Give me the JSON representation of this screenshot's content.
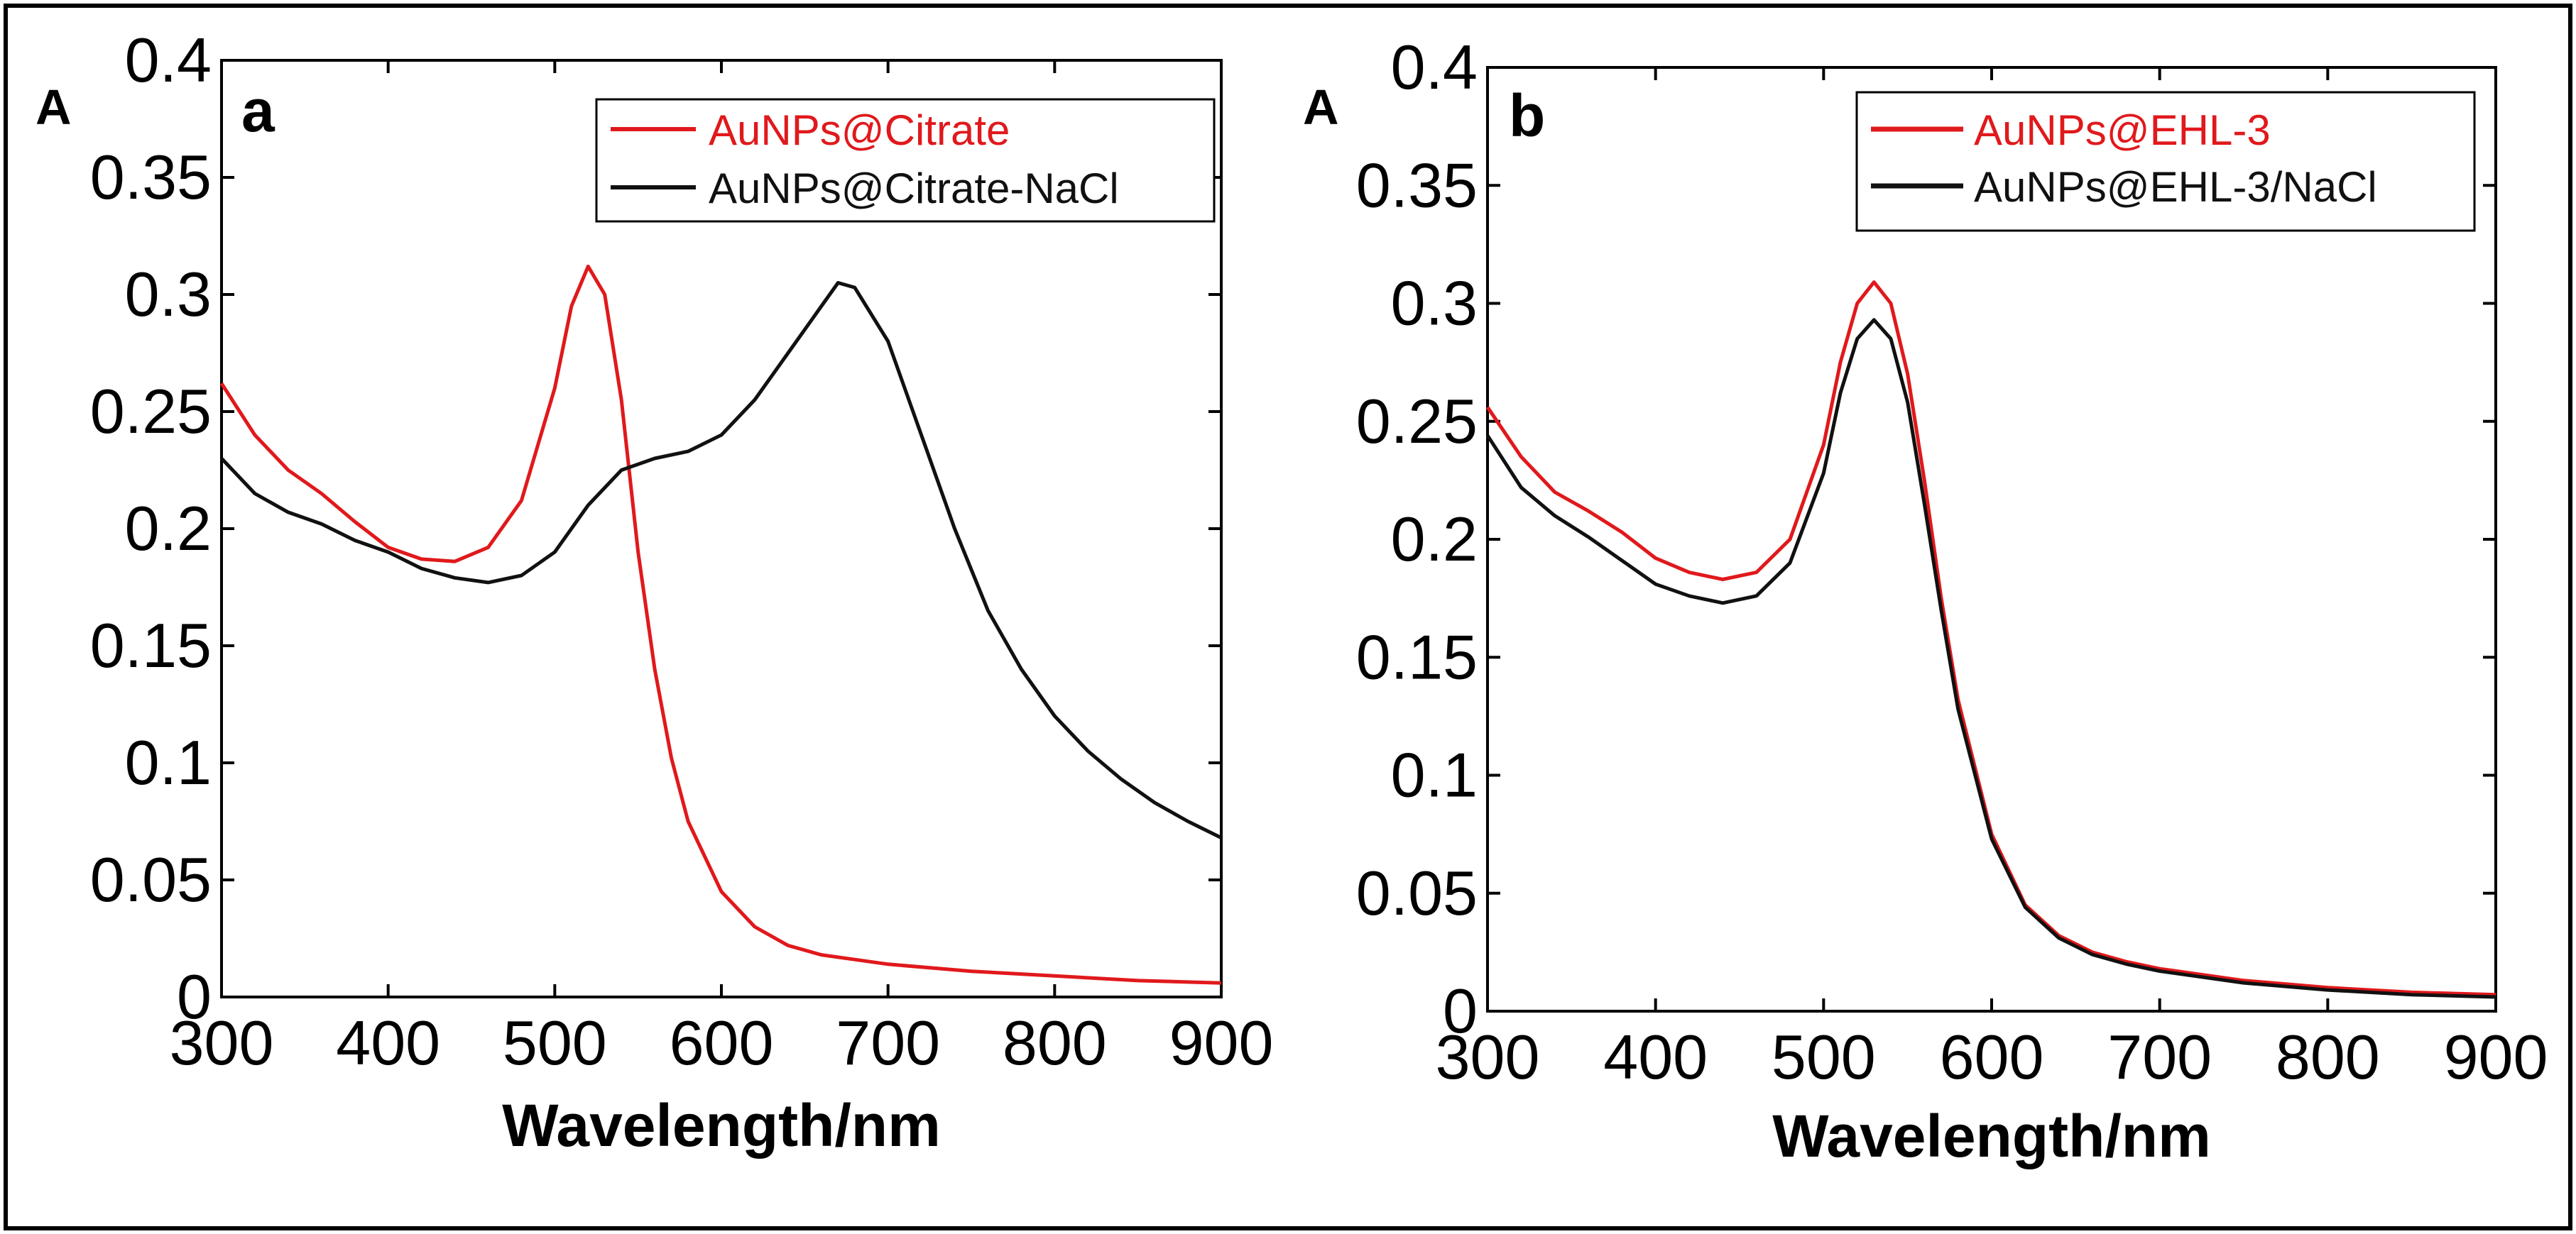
{
  "colors": {
    "red": "#e0191c",
    "black": "#111111"
  },
  "chart_data": [
    {
      "type": "line",
      "panel": "a",
      "ylabel": "A",
      "xlabel": "Wavelength/nm",
      "xlim": [
        300,
        900
      ],
      "ylim": [
        0,
        0.4
      ],
      "xticks": [
        "300",
        "400",
        "500",
        "600",
        "700",
        "800",
        "900"
      ],
      "yticks": [
        "0",
        "0.05",
        "0.1",
        "0.15",
        "0.2",
        "0.25",
        "0.3",
        "0.35",
        "0.4"
      ],
      "legend_position": "top-right",
      "series": [
        {
          "name": "AuNPs@Citrate",
          "color": "#e0191c",
          "x": [
            300,
            320,
            340,
            360,
            380,
            400,
            420,
            440,
            460,
            480,
            500,
            510,
            520,
            530,
            540,
            550,
            560,
            570,
            580,
            600,
            620,
            640,
            660,
            680,
            700,
            750,
            800,
            850,
            900
          ],
          "y": [
            0.262,
            0.24,
            0.225,
            0.215,
            0.203,
            0.192,
            0.187,
            0.186,
            0.192,
            0.212,
            0.26,
            0.295,
            0.312,
            0.3,
            0.255,
            0.19,
            0.14,
            0.102,
            0.075,
            0.045,
            0.03,
            0.022,
            0.018,
            0.016,
            0.014,
            0.011,
            0.009,
            0.007,
            0.006
          ]
        },
        {
          "name": "AuNPs@Citrate-NaCl",
          "color": "#111111",
          "x": [
            300,
            320,
            340,
            360,
            380,
            400,
            420,
            440,
            460,
            480,
            500,
            520,
            540,
            560,
            580,
            600,
            620,
            640,
            660,
            670,
            680,
            700,
            720,
            740,
            760,
            780,
            800,
            820,
            840,
            860,
            880,
            900
          ],
          "y": [
            0.23,
            0.215,
            0.207,
            0.202,
            0.195,
            0.19,
            0.183,
            0.179,
            0.177,
            0.18,
            0.19,
            0.21,
            0.225,
            0.23,
            0.233,
            0.24,
            0.255,
            0.275,
            0.295,
            0.305,
            0.303,
            0.28,
            0.24,
            0.2,
            0.165,
            0.14,
            0.12,
            0.105,
            0.093,
            0.083,
            0.075,
            0.068
          ]
        }
      ]
    },
    {
      "type": "line",
      "panel": "b",
      "ylabel": "A",
      "xlabel": "Wavelength/nm",
      "xlim": [
        300,
        900
      ],
      "ylim": [
        0,
        0.4
      ],
      "xticks": [
        "300",
        "400",
        "500",
        "600",
        "700",
        "800",
        "900"
      ],
      "yticks": [
        "0",
        "0.05",
        "0.1",
        "0.15",
        "0.2",
        "0.25",
        "0.3",
        "0.35",
        "0.4"
      ],
      "legend_position": "top-right",
      "series": [
        {
          "name": "AuNPs@EHL-3",
          "color": "#e0191c",
          "x": [
            300,
            320,
            340,
            360,
            380,
            400,
            420,
            440,
            460,
            480,
            500,
            510,
            520,
            530,
            540,
            550,
            560,
            570,
            580,
            600,
            620,
            640,
            660,
            680,
            700,
            750,
            800,
            850,
            900
          ],
          "y": [
            0.256,
            0.235,
            0.22,
            0.212,
            0.203,
            0.192,
            0.186,
            0.183,
            0.186,
            0.2,
            0.24,
            0.275,
            0.3,
            0.309,
            0.3,
            0.27,
            0.225,
            0.175,
            0.132,
            0.075,
            0.045,
            0.032,
            0.025,
            0.021,
            0.018,
            0.013,
            0.01,
            0.008,
            0.007
          ]
        },
        {
          "name": "AuNPs@EHL-3/NaCl",
          "color": "#111111",
          "x": [
            300,
            320,
            340,
            360,
            380,
            400,
            420,
            440,
            460,
            480,
            500,
            510,
            520,
            530,
            540,
            550,
            560,
            570,
            580,
            600,
            620,
            640,
            660,
            680,
            700,
            750,
            800,
            850,
            900
          ],
          "y": [
            0.244,
            0.222,
            0.21,
            0.201,
            0.191,
            0.181,
            0.176,
            0.173,
            0.176,
            0.19,
            0.228,
            0.262,
            0.285,
            0.293,
            0.285,
            0.258,
            0.215,
            0.17,
            0.128,
            0.073,
            0.044,
            0.031,
            0.024,
            0.02,
            0.017,
            0.012,
            0.009,
            0.007,
            0.006
          ]
        }
      ]
    }
  ]
}
